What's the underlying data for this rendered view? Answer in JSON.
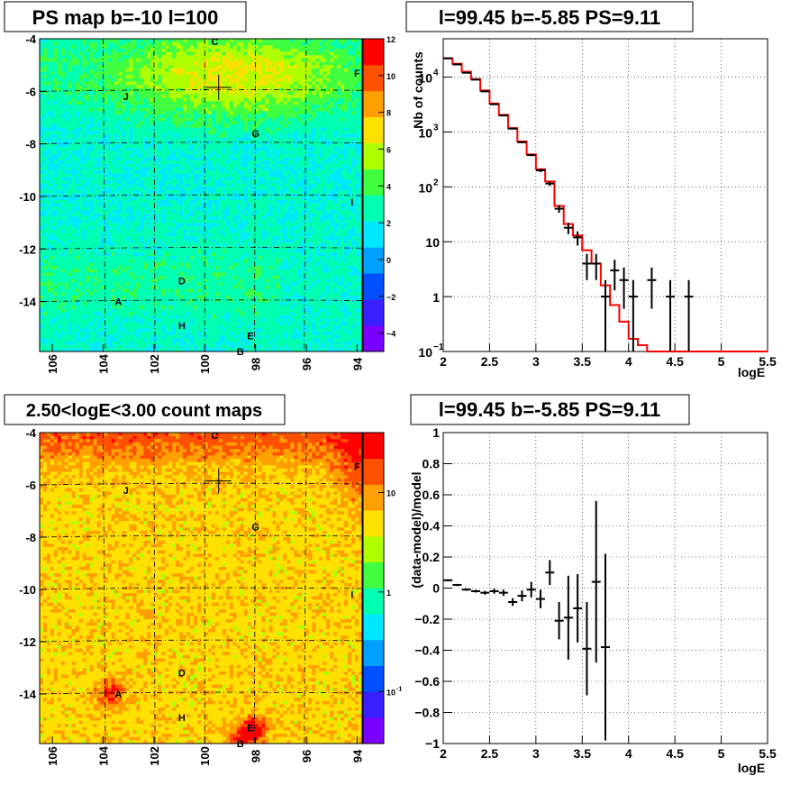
{
  "chart_data": [
    {
      "type": "heatmap",
      "title": "PS map b=-10 l=100",
      "x_ticks": [
        "106",
        "104",
        "102",
        "100",
        "98",
        "96",
        "94"
      ],
      "y_ticks": [
        "-4",
        "-6",
        "-8",
        "-10",
        "-12",
        "-14"
      ],
      "xlim": [
        106.5,
        93.8
      ],
      "ylim": [
        -15.9,
        -4.0
      ],
      "colorbar": {
        "scale": "linear",
        "range": [
          -5,
          12
        ],
        "ticks": [
          "12",
          "10",
          "8",
          "6",
          "4",
          "2",
          "0",
          "-2",
          "-4"
        ],
        "colors": [
          "#7a00ff",
          "#3a20ff",
          "#0050ff",
          "#00a0ff",
          "#00e8ff",
          "#00ffb0",
          "#40ff40",
          "#b0ff00",
          "#ffe000",
          "#ffa000",
          "#ff5000",
          "#ff0000"
        ]
      },
      "markers": [
        {
          "label": "C",
          "l": 99.6,
          "b": -4.1
        },
        {
          "label": "F",
          "l": 94.0,
          "b": -5.3
        },
        {
          "label": "J",
          "l": 103.1,
          "b": -6.2
        },
        {
          "label": "G",
          "l": 98.0,
          "b": -7.6
        },
        {
          "label": "I",
          "l": 94.2,
          "b": -10.2
        },
        {
          "label": "D",
          "l": 100.9,
          "b": -13.2
        },
        {
          "label": "A",
          "l": 103.4,
          "b": -14.0
        },
        {
          "label": "H",
          "l": 100.9,
          "b": -14.9
        },
        {
          "label": "E",
          "l": 98.2,
          "b": -15.3
        },
        {
          "label": "B",
          "l": 98.6,
          "b": -15.9
        }
      ],
      "source_position": {
        "l": 99.45,
        "b": -5.85
      }
    },
    {
      "type": "line",
      "title": "l=99.45 b=-5.85 PS=9.11",
      "xlabel": "logE",
      "ylabel": "Nb of counts",
      "yscale": "log",
      "xlim": [
        2,
        5.5
      ],
      "ylim": [
        0.1,
        50000
      ],
      "x_ticks": [
        "2",
        "2.5",
        "3",
        "3.5",
        "4",
        "4.5",
        "5",
        "5.5"
      ],
      "y_ticks": [
        {
          "v": 0.1,
          "base": "10",
          "exp": "−1"
        },
        {
          "v": 1,
          "base": "1",
          "exp": ""
        },
        {
          "v": 10,
          "base": "10",
          "exp": ""
        },
        {
          "v": 100,
          "base": "10",
          "exp": "2"
        },
        {
          "v": 1000,
          "base": "10",
          "exp": "3"
        },
        {
          "v": 10000,
          "base": "10",
          "exp": "4"
        }
      ],
      "grid": true,
      "data_points": {
        "x": [
          2.05,
          2.15,
          2.25,
          2.35,
          2.45,
          2.55,
          2.65,
          2.75,
          2.85,
          2.95,
          3.05,
          3.15,
          3.25,
          3.35,
          3.45,
          3.55,
          3.65,
          3.75,
          3.85,
          3.95,
          4.05,
          4.25,
          4.45,
          4.65
        ],
        "y": [
          22000,
          17000,
          12000,
          9000,
          5500,
          3200,
          2000,
          1150,
          650,
          380,
          200,
          115,
          40,
          18,
          12,
          4,
          4,
          1,
          3,
          2,
          1,
          2,
          1,
          1
        ],
        "err": [
          148,
          130,
          110,
          95,
          74,
          57,
          45,
          34,
          25,
          19,
          14,
          11,
          6.3,
          4.2,
          3.5,
          2,
          2,
          1,
          1.7,
          1.4,
          1,
          1.4,
          1,
          1
        ]
      },
      "model_edges": [
        2.0,
        2.1,
        2.2,
        2.3,
        2.4,
        2.5,
        2.6,
        2.7,
        2.8,
        2.9,
        3.0,
        3.1,
        3.2,
        3.3,
        3.4,
        3.5,
        3.6,
        3.7,
        3.8,
        3.9,
        4.0,
        4.1,
        4.2,
        5.5
      ],
      "model_values": [
        22000,
        17500,
        12500,
        9200,
        5700,
        3300,
        2050,
        1180,
        670,
        390,
        210,
        125,
        45,
        21,
        13,
        7,
        4,
        1.6,
        0.7,
        0.35,
        0.17,
        0.13,
        0.1
      ],
      "model_color": "#ff0000"
    },
    {
      "type": "heatmap",
      "title": "2.50<logE<3.00 count maps",
      "x_ticks": [
        "106",
        "104",
        "102",
        "100",
        "98",
        "96",
        "94"
      ],
      "y_ticks": [
        "-4",
        "-6",
        "-8",
        "-10",
        "-12",
        "-14"
      ],
      "xlim": [
        106.5,
        93.8
      ],
      "ylim": [
        -15.9,
        -4.0
      ],
      "colorbar": {
        "scale": "log",
        "range": [
          0.03,
          40
        ],
        "ticks": [
          "10",
          "1",
          "10"
        ],
        "tick_exp": [
          "",
          "",
          "-1"
        ],
        "tick_values": [
          10,
          1,
          0.1
        ],
        "colors": [
          "#7a00ff",
          "#3a20ff",
          "#0050ff",
          "#00a0ff",
          "#00e8ff",
          "#00ffb0",
          "#40ff40",
          "#b0ff00",
          "#ffe000",
          "#ffa000",
          "#ff5000",
          "#ff0000"
        ]
      },
      "markers": [
        {
          "label": "C",
          "l": 99.6,
          "b": -4.1
        },
        {
          "label": "F",
          "l": 94.0,
          "b": -5.3
        },
        {
          "label": "J",
          "l": 103.1,
          "b": -6.2
        },
        {
          "label": "G",
          "l": 98.0,
          "b": -7.6
        },
        {
          "label": "I",
          "l": 94.2,
          "b": -10.2
        },
        {
          "label": "D",
          "l": 100.9,
          "b": -13.2
        },
        {
          "label": "A",
          "l": 103.4,
          "b": -14.0
        },
        {
          "label": "H",
          "l": 100.9,
          "b": -14.9
        },
        {
          "label": "E",
          "l": 98.2,
          "b": -15.3
        },
        {
          "label": "B",
          "l": 98.6,
          "b": -15.9
        }
      ],
      "source_position": {
        "l": 99.45,
        "b": -5.85
      }
    },
    {
      "type": "scatter",
      "title": "l=99.45 b=-5.85 PS=9.11",
      "xlabel": "logE",
      "ylabel": "(data-model)/model",
      "xlim": [
        2,
        5.5
      ],
      "ylim": [
        -1,
        1
      ],
      "x_ticks": [
        "2",
        "2.5",
        "3",
        "3.5",
        "4",
        "4.5",
        "5",
        "5.5"
      ],
      "y_ticks": [
        "1",
        "0.8",
        "0.6",
        "0.4",
        "0.2",
        "0",
        "−0.2",
        "−0.4",
        "−0.6",
        "−0.8",
        "−1"
      ],
      "grid": true,
      "data_points": {
        "x": [
          2.05,
          2.15,
          2.25,
          2.35,
          2.45,
          2.55,
          2.65,
          2.75,
          2.85,
          2.95,
          3.05,
          3.15,
          3.25,
          3.35,
          3.45,
          3.55,
          3.65,
          3.75
        ],
        "y": [
          0.05,
          0.02,
          -0.01,
          -0.02,
          -0.03,
          -0.02,
          -0.03,
          -0.09,
          -0.05,
          -0.01,
          -0.07,
          0.1,
          -0.21,
          -0.19,
          -0.13,
          -0.39,
          0.04,
          -0.38
        ],
        "err": [
          0.006,
          0.007,
          0.008,
          0.009,
          0.012,
          0.016,
          0.02,
          0.025,
          0.035,
          0.05,
          0.06,
          0.08,
          0.12,
          0.27,
          0.22,
          0.3,
          0.52,
          0.6
        ]
      }
    }
  ]
}
